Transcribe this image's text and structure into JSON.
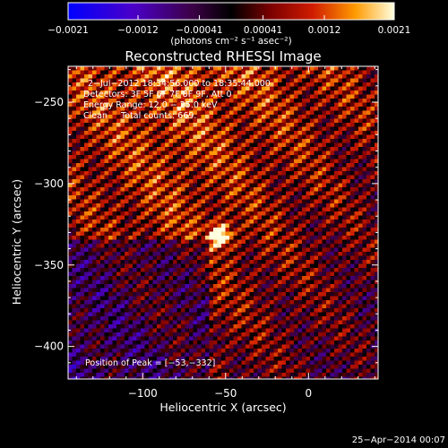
{
  "chart_data": {
    "type": "heatmap",
    "title": "Reconstructed RHESSI Image",
    "xlabel": "Heliocentric X (arcsec)",
    "ylabel": "Heliocentric Y (arcsec)",
    "xlim": [
      -145,
      42
    ],
    "ylim": [
      -420,
      -228
    ],
    "x_ticks": [
      -100,
      -50,
      0
    ],
    "x_tick_labels": [
      "−100",
      "−50",
      "0"
    ],
    "y_ticks": [
      -250,
      -300,
      -350,
      -400
    ],
    "y_tick_labels": [
      "−250",
      "−300",
      "−350",
      "−400"
    ],
    "peak_x": -53,
    "peak_y": -332,
    "colorbar": {
      "vmin": -0.0021,
      "vmax": 0.0021,
      "tick_values": [
        -0.0021,
        -0.0012,
        -0.00041,
        0.00041,
        0.0012,
        0.0021
      ],
      "tick_labels": [
        "−0.0021",
        "−0.0012",
        "−0.00041",
        "0.00041",
        "0.0012",
        "0.0021"
      ],
      "unit_label": "(photons cm⁻² s⁻¹ asec⁻²)"
    },
    "annotations": [
      "2−Jul−2012 18:34:56.000 to 18:35:44.000",
      "Detectors: 3F 5F 6F 7F 8F 9F, Att 0",
      "Energy Range: 12.0 − 25.0 keV",
      "Clean     Total counts: 669."
    ],
    "peak_label": "Position of Peak = [−53,−332]",
    "timestamp": "25−Apr−2014 00:07"
  }
}
